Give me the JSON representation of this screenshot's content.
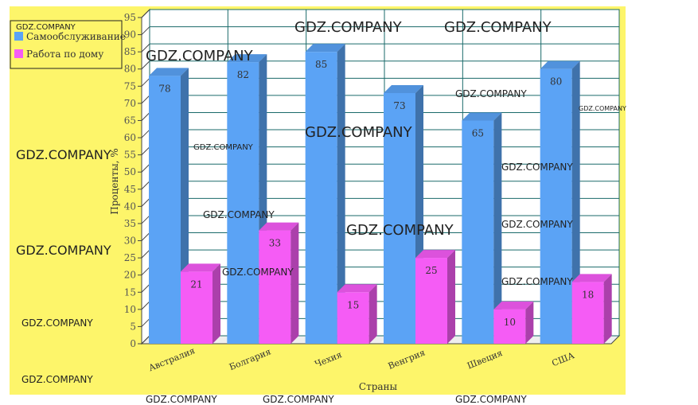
{
  "chart_data": {
    "type": "bar",
    "style": "3d-clustered",
    "categories": [
      "Австралия",
      "Болгария",
      "Чехия",
      "Венгрия",
      "Швеция",
      "США"
    ],
    "series": [
      {
        "name": "Самообслуживание",
        "values": [
          78,
          82,
          85,
          73,
          65,
          80
        ],
        "color": "#5ba3f5"
      },
      {
        "name": "Работа по дому",
        "values": [
          21,
          33,
          15,
          25,
          10,
          18
        ],
        "color": "#f55cf5"
      }
    ],
    "xlabel": "Страны",
    "ylabel": "Проценты, %",
    "ylim": [
      0,
      95
    ],
    "ytick_step": 5,
    "grid": true,
    "legend": "top-left",
    "background": "#fdf56a"
  },
  "watermark": "GDZ.COMPANY"
}
